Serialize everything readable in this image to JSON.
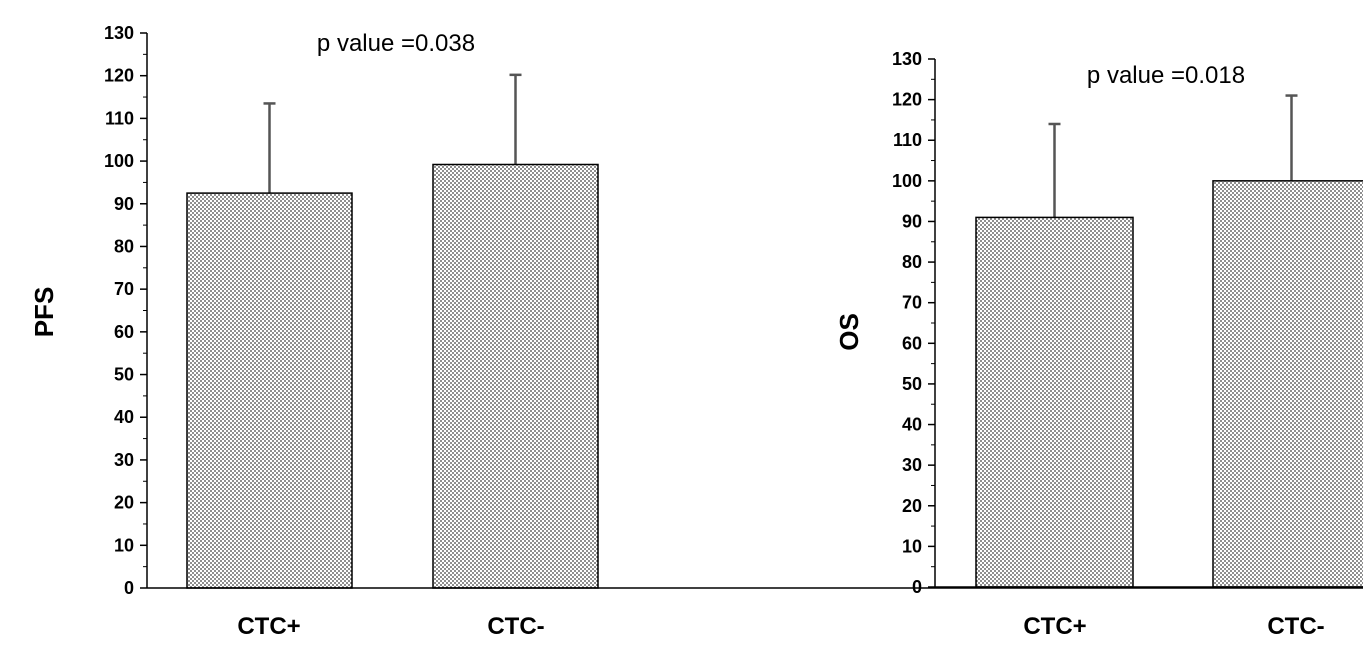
{
  "chart_data": [
    {
      "type": "bar",
      "categories": [
        "CTC+",
        "CTC-"
      ],
      "values": [
        92.5,
        99.2
      ],
      "error_plus": [
        21,
        21
      ],
      "ylabel": "PFS",
      "xlabel": "",
      "ylim": [
        0,
        130
      ],
      "yticks": [
        0,
        10,
        20,
        30,
        40,
        50,
        60,
        70,
        80,
        90,
        100,
        110,
        120,
        130
      ],
      "annotation": "p value  =0.038",
      "grid": false,
      "bar_pattern": "dotted"
    },
    {
      "type": "bar",
      "categories": [
        "CTC+",
        "CTC-"
      ],
      "values": [
        91,
        100
      ],
      "error_plus": [
        23,
        21
      ],
      "ylabel": "OS",
      "xlabel": "",
      "ylim": [
        0,
        130
      ],
      "yticks": [
        0,
        10,
        20,
        30,
        40,
        50,
        60,
        70,
        80,
        90,
        100,
        110,
        120,
        130
      ],
      "annotation": "p value  =0.018",
      "grid": false,
      "bar_pattern": "dotted"
    }
  ]
}
